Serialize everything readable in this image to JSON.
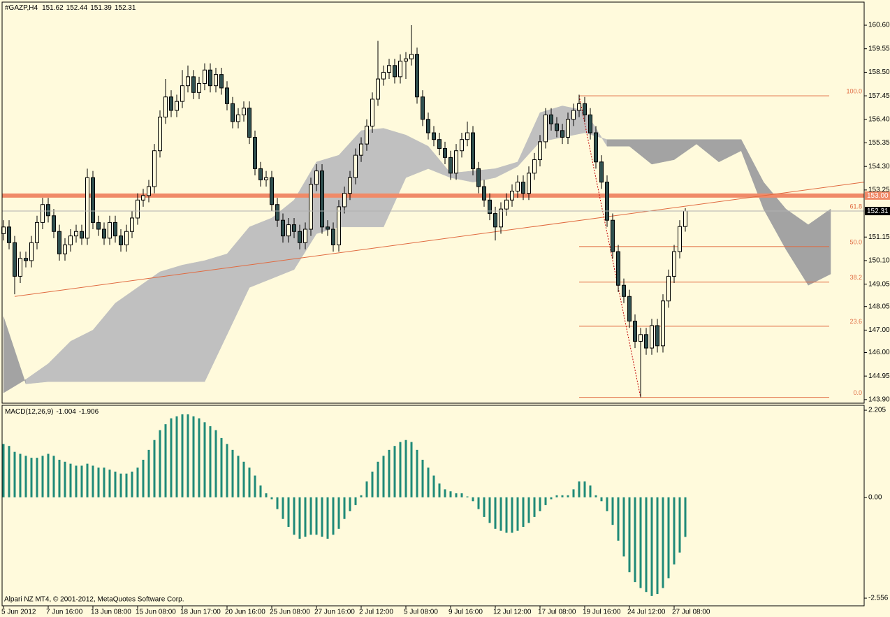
{
  "chart_data": [
    {
      "type": "candlestick",
      "title": "#GAZP,H4",
      "categories": [
        "5 Jun 2012",
        null,
        null,
        null,
        null,
        null,
        null,
        null,
        "7 Jun 16:00",
        null,
        null,
        null,
        null,
        null,
        null,
        null,
        "13 Jun 08:00",
        null,
        null,
        null,
        null,
        null,
        null,
        null,
        "15 Jun 08:00",
        null,
        null,
        null,
        null,
        null,
        null,
        null,
        "18 Jun 17:00",
        null,
        null,
        null,
        null,
        null,
        null,
        null,
        "20 Jun 16:00",
        null,
        null,
        null,
        null,
        null,
        null,
        null,
        "25 Jun 08:00",
        null,
        null,
        null,
        null,
        null,
        null,
        null,
        "27 Jun 16:00",
        null,
        null,
        null,
        null,
        null,
        null,
        null,
        "2 Jul 12:00",
        null,
        null,
        null,
        null,
        null,
        null,
        null,
        "5 Jul 08:00",
        null,
        null,
        null,
        null,
        null,
        null,
        null,
        "9 Jul 16:00",
        null,
        null,
        null,
        null,
        null,
        null,
        null,
        "12 Jul 12:00",
        null,
        null,
        null,
        null,
        null,
        null,
        null,
        "17 Jul 08:00",
        null,
        null,
        null,
        null,
        null,
        null,
        null,
        "19 Jul 16:00",
        null,
        null,
        null,
        null,
        null,
        null,
        null,
        "24 Jul 12:00",
        null,
        null,
        null,
        null,
        null,
        null,
        null,
        "27 Jul 08:00",
        null,
        null
      ],
      "open": [
        151.3,
        151.6,
        150.9,
        149.4,
        150.2,
        150.1,
        150.9,
        151.8,
        152.6,
        152.1,
        151.4,
        150.4,
        150.8,
        151.2,
        151.4,
        151.1,
        153.8,
        151.8,
        151.5,
        151.1,
        151.8,
        151.2,
        150.8,
        151.4,
        152.0,
        152.8,
        153.0,
        153.4,
        155.0,
        156.5,
        157.4,
        156.8,
        157.2,
        157.9,
        158.3,
        157.6,
        158.0,
        158.6,
        157.9,
        158.4,
        157.8,
        157.1,
        156.3,
        156.6,
        156.9,
        155.6,
        154.2,
        153.7,
        153.8,
        152.6,
        151.9,
        151.2,
        151.7,
        151.4,
        150.9,
        151.5,
        153.5,
        154.1,
        151.6,
        151.5,
        150.8,
        152.5,
        153.1,
        153.8,
        154.8,
        155.3,
        156.1,
        157.3,
        158.2,
        158.5,
        158.8,
        158.3,
        159.0,
        159.1,
        159.3,
        157.4,
        156.4,
        155.8,
        155.5,
        155.1,
        154.7,
        154.0,
        155.0,
        155.5,
        155.8,
        154.2,
        153.4,
        152.8,
        152.2,
        151.6,
        152.4,
        152.8,
        153.2,
        153.6,
        153.1,
        154.0,
        154.6,
        155.4,
        156.6,
        156.2,
        155.9,
        155.6,
        156.4,
        156.8,
        157.1,
        156.6,
        155.8,
        154.5,
        153.6,
        151.9,
        150.5,
        149.0,
        148.5,
        147.4,
        146.5,
        146.8,
        146.2,
        147.2,
        146.3,
        148.3,
        149.4,
        150.5,
        151.62
      ],
      "high": [
        151.9,
        151.9,
        151.2,
        150.5,
        150.5,
        151.2,
        152.1,
        152.9,
        152.9,
        152.4,
        151.7,
        151.1,
        151.5,
        151.7,
        151.7,
        154.2,
        154.1,
        152.1,
        151.8,
        152.1,
        152.1,
        151.5,
        151.7,
        152.3,
        153.1,
        153.3,
        153.7,
        155.3,
        156.8,
        158.2,
        157.7,
        157.5,
        158.6,
        158.8,
        158.6,
        158.3,
        158.9,
        158.9,
        158.7,
        158.7,
        158.1,
        157.4,
        156.9,
        157.2,
        157.2,
        155.9,
        154.5,
        154.1,
        154.1,
        152.9,
        152.2,
        152.0,
        152.0,
        151.7,
        151.8,
        153.8,
        154.4,
        154.4,
        151.9,
        151.8,
        152.8,
        153.4,
        154.1,
        155.1,
        155.6,
        156.4,
        157.6,
        159.9,
        158.8,
        159.1,
        159.1,
        159.3,
        159.4,
        160.6,
        159.6,
        157.7,
        156.7,
        156.1,
        155.8,
        155.4,
        155.0,
        155.3,
        155.8,
        156.3,
        156.1,
        154.5,
        153.7,
        153.1,
        152.5,
        152.7,
        153.1,
        153.5,
        153.9,
        153.9,
        154.3,
        154.9,
        155.7,
        156.9,
        156.9,
        156.5,
        156.2,
        156.7,
        157.1,
        157.5,
        157.4,
        156.9,
        156.1,
        154.8,
        153.9,
        152.2,
        150.8,
        149.3,
        148.8,
        147.7,
        147.1,
        147.1,
        147.5,
        147.5,
        148.6,
        149.7,
        150.8,
        151.9,
        152.44
      ],
      "low": [
        151.0,
        150.6,
        148.6,
        149.1,
        149.8,
        149.8,
        150.6,
        151.5,
        151.8,
        151.1,
        150.1,
        150.1,
        150.5,
        150.9,
        150.8,
        150.8,
        151.5,
        151.2,
        150.8,
        150.8,
        150.9,
        150.5,
        150.5,
        151.1,
        151.7,
        152.5,
        152.7,
        153.1,
        154.7,
        156.2,
        156.5,
        156.5,
        156.9,
        157.6,
        157.3,
        157.3,
        157.7,
        157.6,
        157.6,
        157.5,
        156.8,
        156.0,
        156.0,
        156.3,
        155.3,
        153.9,
        153.4,
        153.4,
        152.3,
        151.6,
        150.9,
        150.9,
        151.1,
        150.6,
        150.6,
        151.2,
        153.2,
        151.3,
        151.2,
        150.5,
        150.5,
        152.2,
        152.8,
        153.5,
        154.5,
        155.0,
        155.8,
        157.0,
        157.9,
        158.2,
        158.0,
        158.0,
        158.2,
        158.8,
        157.1,
        156.1,
        155.5,
        155.2,
        154.8,
        154.4,
        153.7,
        153.7,
        154.7,
        155.2,
        153.9,
        153.1,
        152.5,
        151.9,
        151.0,
        151.3,
        152.1,
        152.5,
        152.9,
        152.8,
        152.8,
        153.7,
        154.3,
        155.1,
        155.9,
        155.6,
        155.3,
        155.3,
        156.1,
        156.5,
        156.3,
        155.5,
        154.2,
        153.3,
        151.6,
        150.2,
        148.7,
        148.2,
        147.1,
        146.2,
        144.0,
        145.9,
        145.9,
        146.0,
        146.0,
        148.0,
        149.1,
        150.2,
        151.39
      ],
      "close": [
        151.6,
        150.9,
        149.4,
        150.2,
        150.1,
        150.9,
        151.8,
        152.6,
        152.1,
        151.4,
        150.4,
        150.8,
        151.2,
        151.4,
        151.1,
        153.8,
        151.8,
        151.5,
        151.1,
        151.8,
        151.2,
        150.8,
        151.4,
        152.0,
        152.8,
        153.0,
        153.4,
        155.0,
        156.5,
        157.4,
        156.8,
        157.2,
        157.9,
        158.3,
        157.6,
        158.0,
        158.6,
        157.9,
        158.4,
        157.8,
        157.1,
        156.3,
        156.6,
        156.9,
        155.6,
        154.2,
        153.7,
        153.8,
        152.6,
        151.9,
        151.2,
        151.7,
        151.4,
        150.9,
        151.5,
        153.5,
        154.1,
        151.6,
        151.5,
        150.8,
        152.5,
        153.1,
        153.8,
        154.8,
        155.3,
        156.1,
        157.3,
        158.2,
        158.5,
        158.8,
        158.3,
        159.0,
        159.1,
        159.3,
        157.4,
        156.4,
        155.8,
        155.5,
        155.1,
        154.7,
        154.0,
        155.0,
        155.5,
        155.8,
        154.2,
        153.4,
        152.8,
        152.2,
        151.6,
        152.4,
        152.8,
        153.2,
        153.6,
        153.1,
        154.0,
        154.6,
        155.4,
        156.6,
        156.2,
        155.9,
        155.6,
        156.4,
        156.8,
        157.1,
        156.6,
        155.8,
        154.5,
        153.6,
        151.9,
        150.5,
        149.0,
        148.5,
        147.4,
        146.5,
        146.8,
        146.2,
        147.2,
        146.3,
        148.3,
        149.4,
        150.5,
        151.62,
        152.31
      ],
      "bull_color": "#fffadc",
      "bear_color": "#2f4f4f",
      "wick_color": "#000000",
      "ylim": [
        143.74,
        161.63
      ],
      "yticks": [
        {
          "value": 160.6,
          "label": "160.60"
        },
        159.55,
        {
          "value": 158.5,
          "label": "158.50"
        },
        157.45,
        {
          "value": 156.4,
          "label": "156.40"
        },
        155.35,
        {
          "value": 154.3,
          "label": "154.30"
        },
        153.25,
        151.15,
        {
          "value": 150.1,
          "label": "150.10"
        },
        149.05,
        148.05,
        {
          "value": 147,
          "label": "147.00"
        },
        {
          "value": 146,
          "label": "146.00"
        },
        144.95,
        {
          "value": 143.9,
          "label": "143.90"
        }
      ],
      "cloud": {
        "x": [
          0,
          4,
          8,
          12,
          16,
          20,
          24,
          28,
          32,
          36,
          40,
          44,
          48,
          52,
          56,
          60,
          64,
          68,
          72,
          76,
          80,
          84,
          88,
          92,
          96,
          100,
          104,
          108,
          112,
          116,
          120,
          124,
          128,
          132,
          136,
          140,
          144,
          148
        ],
        "span_a": [
          144.2,
          144.8,
          145.5,
          146.5,
          147.0,
          148.2,
          148.9,
          149.6,
          149.9,
          150.1,
          150.4,
          151.6,
          152.0,
          152.8,
          154.5,
          154.8,
          155.9,
          156.0,
          155.7,
          155.2,
          154.0,
          154.1,
          154.2,
          154.5,
          156.7,
          157.0,
          156.8,
          155.2,
          155.2,
          154.4,
          154.6,
          155.3,
          154.5,
          155.0,
          152.4,
          150.6,
          149.0,
          149.5
        ],
        "span_b": [
          147.6,
          144.6,
          144.7,
          144.7,
          144.7,
          144.7,
          144.7,
          144.7,
          144.7,
          144.7,
          146.8,
          148.9,
          149.3,
          149.7,
          151.3,
          151.6,
          151.6,
          151.6,
          153.8,
          154.2,
          153.8,
          153.6,
          153.8,
          154.3,
          155.4,
          155.6,
          155.8,
          155.5,
          155.5,
          155.5,
          155.5,
          155.5,
          155.5,
          155.5,
          153.6,
          152.4,
          151.7,
          152.4
        ],
        "bull_color": "#c0c0c0",
        "bear_color": "#a3a3a3"
      },
      "level": {
        "value": 153,
        "label": "153.00",
        "color": "#f08a68"
      },
      "trendline": {
        "x": [
          2,
          154
        ],
        "y": [
          148.5,
          153.6
        ],
        "color": "#e06a40"
      },
      "fibo": {
        "x": [
          103,
          114
        ],
        "y": [
          157.45,
          144.0
        ],
        "color": "#e06a40",
        "levels": [
          {
            "value": 100,
            "label": "100.0"
          },
          {
            "value": 61.8,
            "label": "61.8"
          },
          {
            "value": 50,
            "label": "50.0"
          },
          {
            "value": 38.2,
            "label": "38.2"
          },
          {
            "value": 23.6,
            "label": "23.6"
          },
          {
            "value": 0,
            "label": "0.0"
          }
        ]
      }
    },
    {
      "type": "bar",
      "title": "MACD(12,26,9)",
      "values": [
        1.35,
        1.3,
        1.15,
        1.1,
        1.05,
        1.0,
        1.0,
        1.05,
        1.1,
        1.05,
        0.95,
        0.9,
        0.85,
        0.8,
        0.8,
        0.85,
        0.8,
        0.75,
        0.75,
        0.7,
        0.65,
        0.6,
        0.6,
        0.65,
        0.75,
        0.95,
        1.2,
        1.45,
        1.7,
        1.85,
        2.0,
        2.05,
        2.1,
        2.1,
        2.05,
        2.0,
        1.9,
        1.8,
        1.7,
        1.5,
        1.35,
        1.2,
        1.05,
        0.9,
        0.75,
        0.55,
        0.3,
        0.1,
        -0.05,
        -0.3,
        -0.55,
        -0.75,
        -0.95,
        -1.05,
        -1.0,
        -0.95,
        -0.95,
        -1.0,
        -1.05,
        -0.95,
        -0.8,
        -0.55,
        -0.35,
        -0.2,
        0.05,
        0.4,
        0.65,
        0.9,
        1.05,
        1.2,
        1.3,
        1.4,
        1.45,
        1.4,
        1.2,
        0.95,
        0.75,
        0.55,
        0.35,
        0.2,
        0.15,
        0.1,
        0.1,
        0.02,
        -0.1,
        -0.3,
        -0.5,
        -0.65,
        -0.8,
        -0.85,
        -0.9,
        -0.9,
        -0.85,
        -0.75,
        -0.65,
        -0.5,
        -0.35,
        -0.2,
        -0.05,
        0.05,
        0.05,
        0.05,
        0.2,
        0.4,
        0.4,
        0.3,
        0.05,
        -0.1,
        -0.35,
        -0.7,
        -1.1,
        -1.5,
        -1.9,
        -2.15,
        -2.3,
        -2.4,
        -2.5,
        -2.45,
        -2.3,
        -2.05,
        -1.7,
        -1.4,
        -1.004
      ],
      "signal_value": -1.906,
      "color": "#1f8a78",
      "ylim": [
        -2.75,
        2.33
      ],
      "yticks": [
        2.205,
        {
          "value": 0,
          "label": "0.00"
        },
        -2.556
      ],
      "copyright": "Alpari NZ MT4, © 2001-2012, MetaQuotes Software Corp."
    }
  ]
}
